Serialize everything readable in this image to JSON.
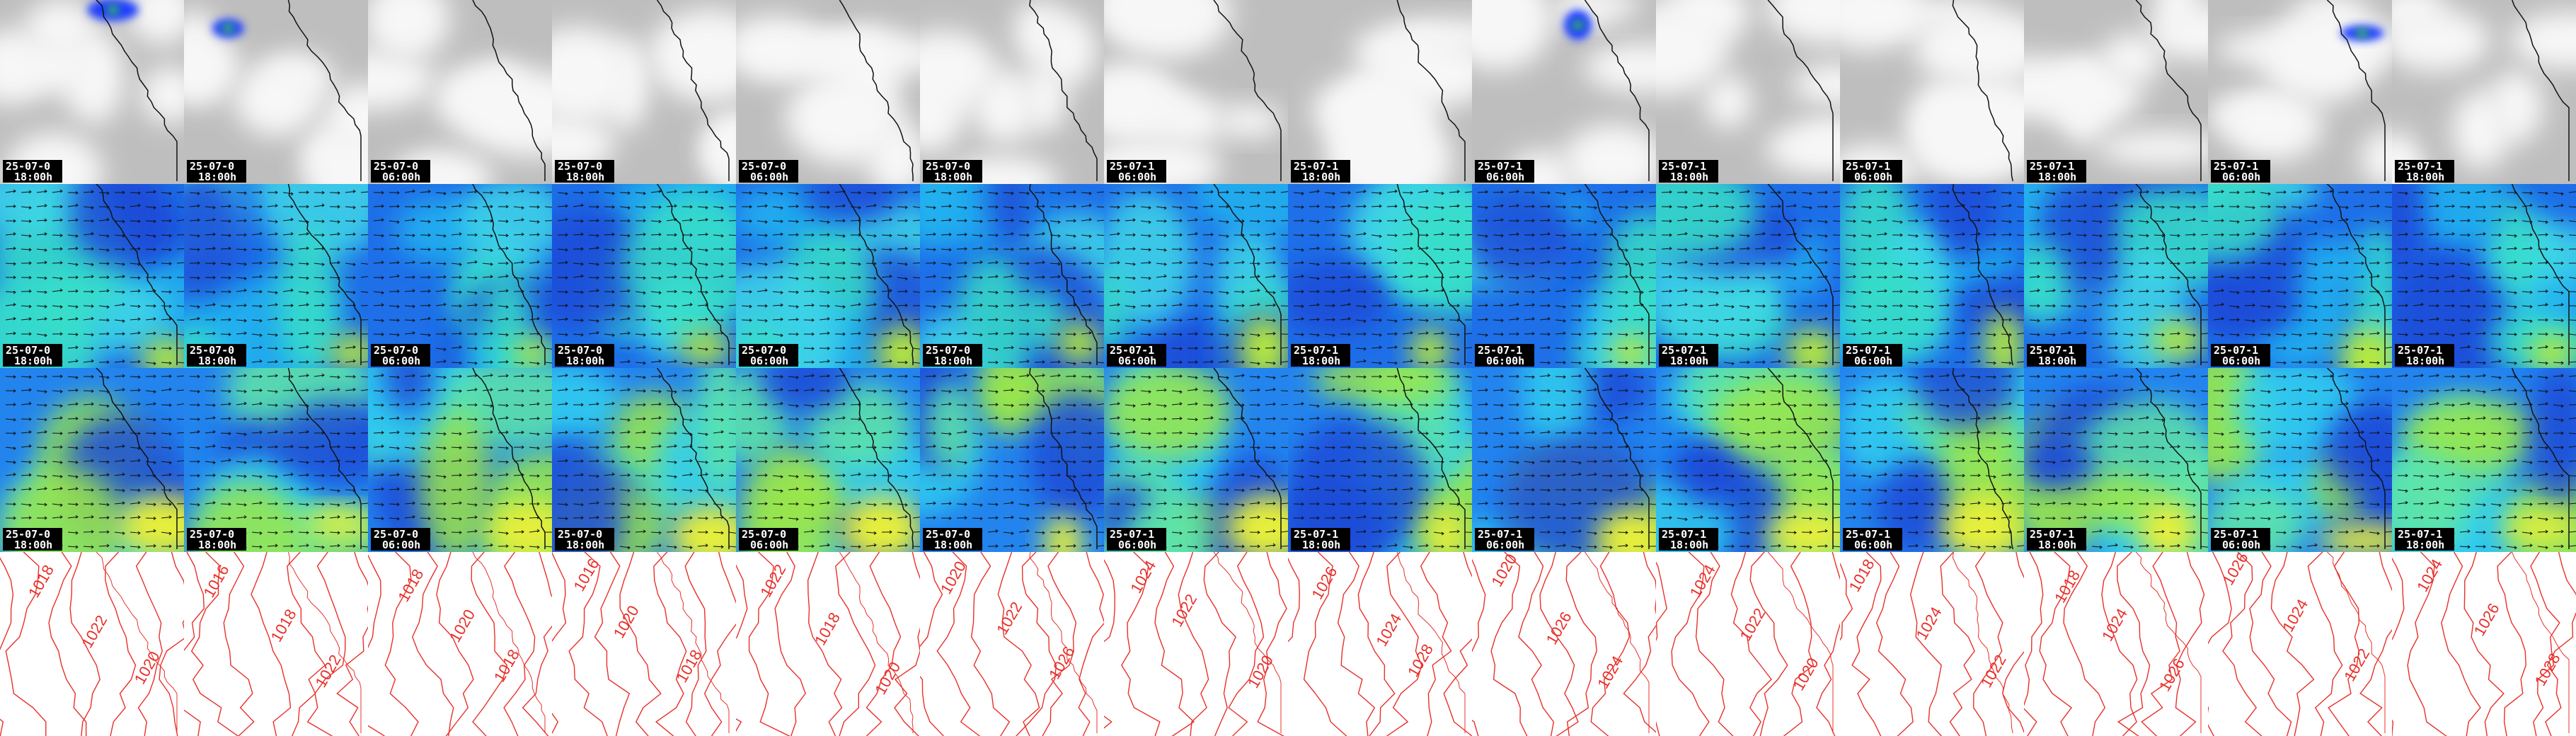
{
  "panels": {
    "columns": [
      {
        "date": "25-07-0",
        "time": "18:00h",
        "contours": [
          "1018",
          "1022",
          "1020"
        ]
      },
      {
        "date": "25-07-0",
        "time": "18:00h",
        "contours": [
          "1016",
          "1018",
          "1022"
        ]
      },
      {
        "date": "25-07-0",
        "time": "06:00h",
        "contours": [
          "1018",
          "1020",
          "1018"
        ]
      },
      {
        "date": "25-07-0",
        "time": "18:00h",
        "contours": [
          "1016",
          "1020",
          "1018"
        ]
      },
      {
        "date": "25-07-0",
        "time": "06:00h",
        "contours": [
          "1022",
          "1018",
          "1020"
        ]
      },
      {
        "date": "25-07-0",
        "time": "18:00h",
        "contours": [
          "1020",
          "1022",
          "1026"
        ]
      },
      {
        "date": "25-07-1",
        "time": "06:00h",
        "contours": [
          "1024",
          "1022",
          "1020"
        ]
      },
      {
        "date": "25-07-1",
        "time": "18:00h",
        "contours": [
          "1026",
          "1024",
          "1028"
        ]
      },
      {
        "date": "25-07-1",
        "time": "06:00h",
        "contours": [
          "1020",
          "1026",
          "1024"
        ]
      },
      {
        "date": "25-07-1",
        "time": "18:00h",
        "contours": [
          "1024",
          "1022",
          "1020"
        ]
      },
      {
        "date": "25-07-1",
        "time": "06:00h",
        "contours": [
          "1018",
          "1024",
          "1022"
        ]
      },
      {
        "date": "25-07-1",
        "time": "18:00h",
        "contours": [
          "1018",
          "1024",
          "1026"
        ]
      },
      {
        "date": "25-07-1",
        "time": "06:00h",
        "contours": [
          "1026",
          "1024",
          "1022"
        ]
      },
      {
        "date": "25-07-1",
        "time": "18:00h",
        "contours": [
          "1024",
          "1026",
          "1028"
        ]
      }
    ]
  }
}
